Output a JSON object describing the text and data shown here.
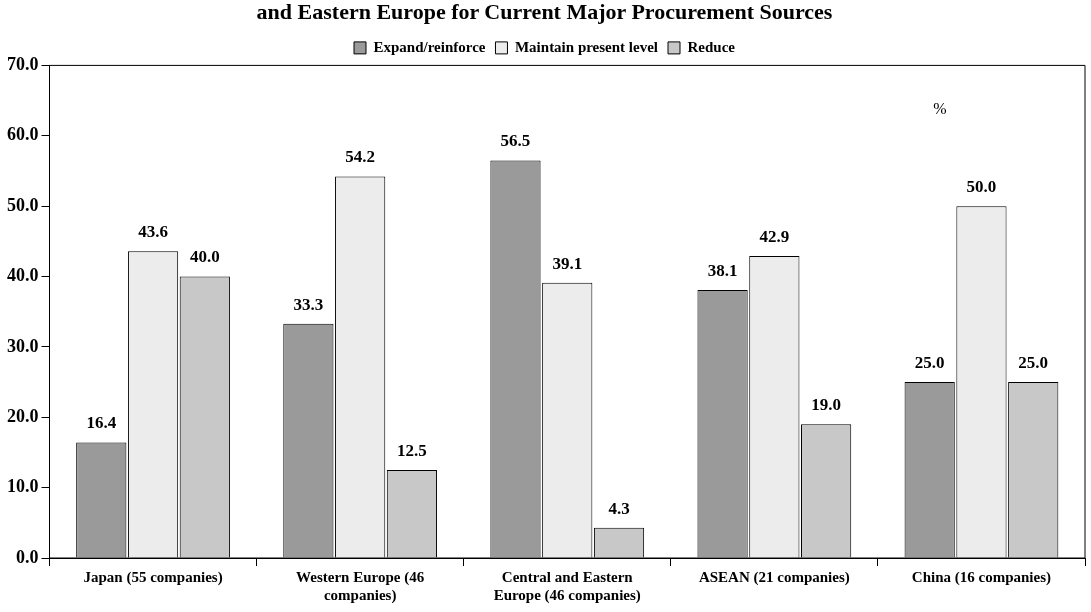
{
  "chart_data": {
    "type": "bar",
    "title": "and Eastern Europe for Current Major Procurement Sources",
    "categories": [
      "Japan (55 companies)",
      "Western Europe (46 companies)",
      "Central and Eastern Europe (46 companies)",
      "ASEAN (21 companies)",
      "China (16 companies)"
    ],
    "series": [
      {
        "name": "Expand/reinforce",
        "color": "#9a9a9a",
        "values": [
          16.4,
          33.3,
          56.5,
          38.1,
          25.0
        ],
        "value_labels": [
          "16.4",
          "33.3",
          "56.5",
          "38.1",
          "25.0"
        ]
      },
      {
        "name": "Maintain present level",
        "color": "#ececec",
        "values": [
          43.6,
          54.2,
          39.1,
          42.9,
          50.0
        ],
        "value_labels": [
          "43.6",
          "54.2",
          "39.1",
          "42.9",
          "50.0"
        ]
      },
      {
        "name": "Reduce",
        "color": "#c8c8c8",
        "values": [
          40.0,
          12.5,
          4.3,
          19.0,
          25.0
        ],
        "value_labels": [
          "40.0",
          "12.5",
          "4.3",
          "19.0",
          "25.0"
        ]
      }
    ],
    "ylim": [
      0,
      70
    ],
    "yticks": [
      {
        "value": 0,
        "label": "0.0"
      },
      {
        "value": 10,
        "label": "10.0"
      },
      {
        "value": 20,
        "label": "20.0"
      },
      {
        "value": 30,
        "label": "30.0"
      },
      {
        "value": 40,
        "label": "40.0"
      },
      {
        "value": 50,
        "label": "50.0"
      },
      {
        "value": 60,
        "label": "60.0"
      },
      {
        "value": 70,
        "label": "70.0"
      }
    ],
    "annotations": [
      "%"
    ],
    "legend": "top",
    "grid": false
  }
}
